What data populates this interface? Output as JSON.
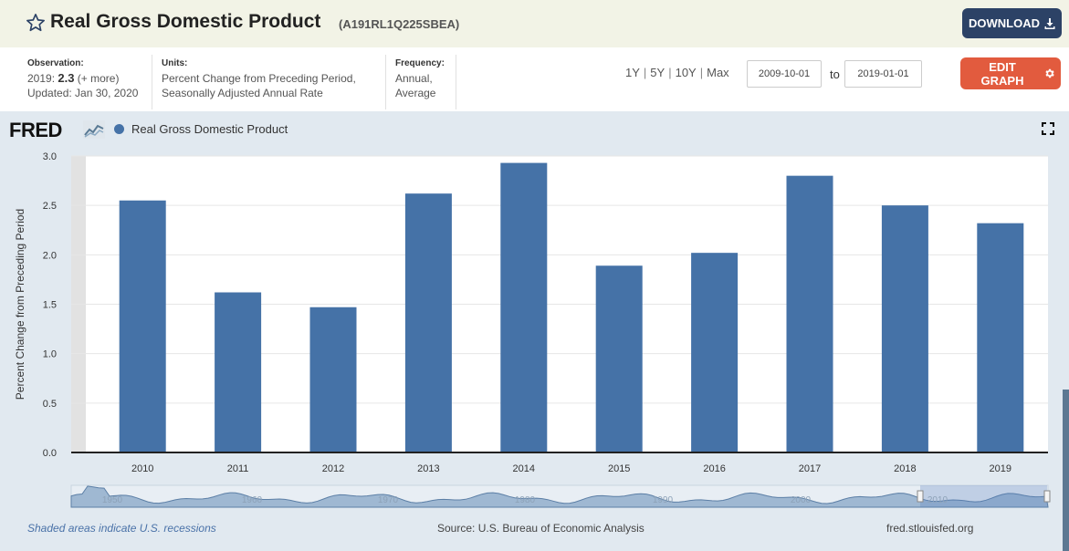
{
  "header": {
    "title": "Real Gross Domestic Product",
    "series_id": "(A191RL1Q225SBEA)",
    "download_label": "DOWNLOAD"
  },
  "meta": {
    "observation_label": "Observation:",
    "observation_year": "2019:",
    "observation_value": "2.3",
    "observation_more": "(+ more)",
    "updated": "Updated: Jan 30, 2020",
    "units_label": "Units:",
    "units_line1": "Percent Change from Preceding Period,",
    "units_line2": "Seasonally Adjusted Annual Rate",
    "frequency_label": "Frequency:",
    "frequency_line1": "Annual,",
    "frequency_line2": "Average"
  },
  "range": {
    "links": [
      "1Y",
      "5Y",
      "10Y",
      "Max"
    ],
    "start_date": "2009-10-01",
    "to_label": "to",
    "end_date": "2019-01-01"
  },
  "edit_label": "EDIT GRAPH",
  "legend": {
    "logo": "FRED",
    "series": "Real Gross Domestic Product"
  },
  "footer": {
    "recession_note": "Shaded areas indicate U.S. recessions",
    "source": "Source: U.S. Bureau of Economic Analysis",
    "site": "fred.stlouisfed.org"
  },
  "colors": {
    "bar": "#4572a7",
    "header_bg": "#f2f3e6",
    "download_bg": "#2c4266",
    "edit_bg": "#e25b3e",
    "panel_bg": "#e1e9f0"
  },
  "icons": {
    "star": "star-icon",
    "download": "download-icon",
    "gear": "gear-icon",
    "fullscreen": "fullscreen-icon"
  },
  "chart_data": {
    "type": "bar",
    "categories": [
      "2010",
      "2011",
      "2012",
      "2013",
      "2014",
      "2015",
      "2016",
      "2017",
      "2018",
      "2019"
    ],
    "series": [
      {
        "name": "Real Gross Domestic Product",
        "values": [
          2.55,
          1.62,
          1.47,
          2.62,
          2.93,
          1.89,
          2.02,
          2.8,
          2.5,
          2.32
        ]
      }
    ],
    "ylabel": "Percent Change from Preceding Period",
    "ylim": [
      0,
      3.0
    ],
    "yticks": [
      "0.0",
      "0.5",
      "1.0",
      "1.5",
      "2.0",
      "2.5",
      "3.0"
    ],
    "grid": true,
    "navigator_ticks": [
      "1950",
      "1960",
      "1970",
      "1980",
      "1990",
      "2000",
      "2010"
    ]
  }
}
